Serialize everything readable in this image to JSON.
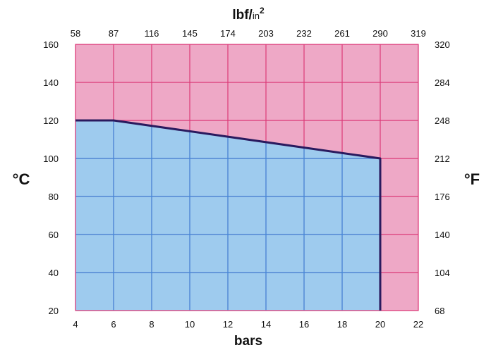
{
  "chart_data": {
    "type": "area",
    "x_bottom": {
      "label": "bars",
      "range": [
        4,
        22
      ],
      "ticks": [
        4,
        6,
        8,
        10,
        12,
        14,
        16,
        18,
        20,
        22
      ]
    },
    "x_top": {
      "label_base": "lbf/",
      "label_sub": "in",
      "label_sup": "2",
      "tick_labels": [
        "58",
        "87",
        "116",
        "145",
        "174",
        "203",
        "232",
        "261",
        "290",
        "319"
      ]
    },
    "y_left": {
      "label": "°C",
      "range": [
        20,
        160
      ],
      "ticks": [
        20,
        40,
        60,
        80,
        100,
        120,
        140,
        160
      ]
    },
    "y_right": {
      "label": "°F",
      "tick_labels": [
        "68",
        "104",
        "140",
        "176",
        "212",
        "248",
        "284",
        "320"
      ]
    },
    "grid": true,
    "boundary": {
      "x": [
        4,
        6,
        20,
        20
      ],
      "y": [
        120,
        120,
        100,
        20
      ]
    },
    "colors": {
      "allowed_region": "#9ecbee",
      "outside_region": "#eea8c6",
      "grid_in_allowed": "#3a8ee0",
      "grid_in_outside": "#dc3a78",
      "boundary_line": "#2a1a5e",
      "plot_border": "#dc3a78"
    }
  }
}
